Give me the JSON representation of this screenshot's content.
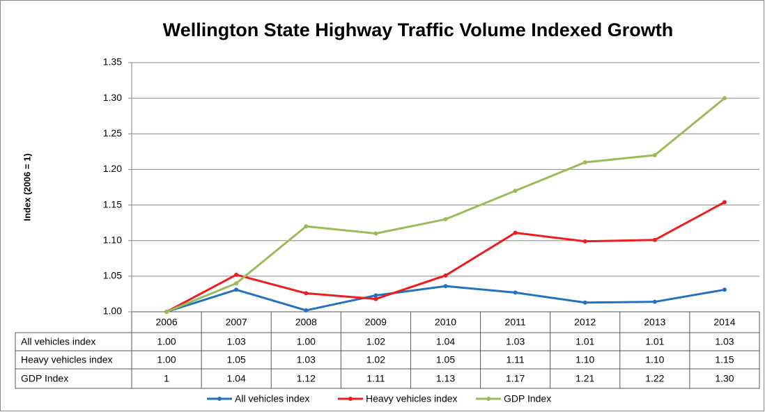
{
  "chart_data": {
    "type": "line",
    "title": "Wellington State Highway Traffic Volume Indexed Growth",
    "y_label": "Index (2006 = 1)",
    "categories": [
      "2006",
      "2007",
      "2008",
      "2009",
      "2010",
      "2011",
      "2012",
      "2013",
      "2014"
    ],
    "series": [
      {
        "name": "All vehicles index",
        "color": "#2372c0",
        "values": [
          1.0,
          1.031,
          1.002,
          1.023,
          1.036,
          1.027,
          1.013,
          1.014,
          1.031
        ],
        "value_labels": [
          "1.00",
          "1.03",
          "1.00",
          "1.02",
          "1.04",
          "1.03",
          "1.01",
          "1.01",
          "1.03"
        ]
      },
      {
        "name": "Heavy vehicles index",
        "color": "#ee1c1c",
        "values": [
          1.0,
          1.052,
          1.026,
          1.018,
          1.051,
          1.111,
          1.099,
          1.101,
          1.154
        ],
        "value_labels": [
          "1.00",
          "1.05",
          "1.03",
          "1.02",
          "1.05",
          "1.11",
          "1.10",
          "1.10",
          "1.15"
        ]
      },
      {
        "name": "GDP Index",
        "color": "#9bbb59",
        "values": [
          1,
          1.04,
          1.12,
          1.11,
          1.13,
          1.17,
          1.21,
          1.22,
          1.3
        ],
        "value_labels": [
          "1",
          "1.04",
          "1.12",
          "1.11",
          "1.13",
          "1.17",
          "1.21",
          "1.22",
          "1.30"
        ]
      }
    ],
    "ylim": [
      1.0,
      1.35
    ],
    "yticks": [
      {
        "value": 1.0,
        "label": "1.00"
      },
      1.05,
      {
        "value": 1.1,
        "label": "1.10"
      },
      1.15,
      {
        "value": 1.2,
        "label": "1.20"
      },
      1.25,
      {
        "value": 1.3,
        "label": "1.30"
      },
      1.35
    ],
    "grid": true
  }
}
